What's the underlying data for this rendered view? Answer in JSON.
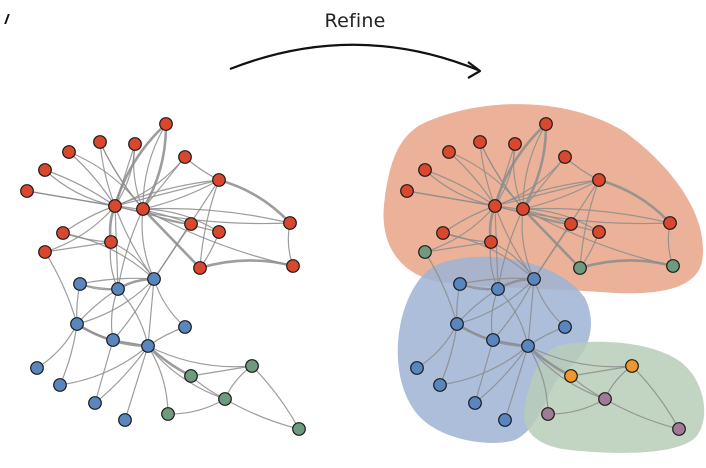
{
  "header": {
    "title": "Refine"
  },
  "colors": {
    "red": "#d9472e",
    "blue": "#5a86c0",
    "green": "#6e9a80",
    "orange": "#f0962b",
    "purple": "#a07a96",
    "edge": "#8c8c8c",
    "regionRed": "#e7a487",
    "regionBlue": "#9eb3d3",
    "regionGreen": "#b7cdb7"
  },
  "graphs": {
    "original": {
      "node_colors": [
        "red",
        "red",
        "red",
        "red",
        "red",
        "red",
        "red",
        "red",
        "red",
        "red",
        "red",
        "red",
        "red",
        "red",
        "red",
        "red",
        "red",
        "red",
        "blue",
        "blue",
        "blue",
        "blue",
        "blue",
        "blue",
        "blue",
        "blue",
        "blue",
        "blue",
        "blue",
        "green",
        "green",
        "green",
        "green",
        "green"
      ]
    },
    "refined": {
      "node_colors": [
        "red",
        "red",
        "red",
        "red",
        "red",
        "red",
        "red",
        "red",
        "red",
        "red",
        "red",
        "red",
        "red",
        "red",
        "red",
        "green",
        "green",
        "green",
        "blue",
        "blue",
        "blue",
        "blue",
        "blue",
        "blue",
        "blue",
        "blue",
        "blue",
        "blue",
        "blue",
        "orange",
        "orange",
        "purple",
        "purple",
        "purple"
      ]
    }
  }
}
